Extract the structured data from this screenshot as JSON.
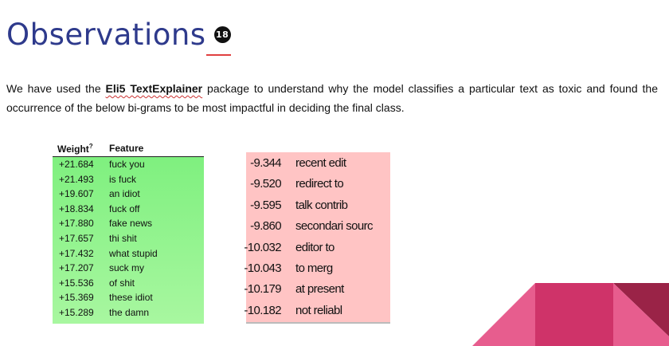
{
  "header": {
    "title": "Observations",
    "badge": "18"
  },
  "intro": {
    "part1": "We have used the",
    "bold": "Eli5 TextExplainer",
    "part2": "package to understand why the model classifies a particular text as toxic and found the occurrence of the below bi-grams to be most impactful in deciding the final class."
  },
  "positive_table": {
    "header_weight": "Weight",
    "header_sup": "?",
    "header_feature": "Feature",
    "rows": [
      {
        "weight": "+21.684",
        "feature": "fuck you"
      },
      {
        "weight": "+21.493",
        "feature": "is fuck"
      },
      {
        "weight": "+19.607",
        "feature": "an idiot"
      },
      {
        "weight": "+18.834",
        "feature": "fuck off"
      },
      {
        "weight": "+17.880",
        "feature": "fake news"
      },
      {
        "weight": "+17.657",
        "feature": "thi shit"
      },
      {
        "weight": "+17.432",
        "feature": "what stupid"
      },
      {
        "weight": "+17.207",
        "feature": "suck my"
      },
      {
        "weight": "+15.536",
        "feature": "of shit"
      },
      {
        "weight": "+15.369",
        "feature": "these idiot"
      },
      {
        "weight": "+15.289",
        "feature": "the damn"
      }
    ]
  },
  "negative_table": {
    "rows": [
      {
        "weight": "-9.344",
        "feature": "recent edit"
      },
      {
        "weight": "-9.520",
        "feature": "redirect to"
      },
      {
        "weight": "-9.595",
        "feature": "talk contrib"
      },
      {
        "weight": "-9.860",
        "feature": "secondari sourc"
      },
      {
        "weight": "-10.032",
        "feature": "editor to"
      },
      {
        "weight": "-10.043",
        "feature": "to merg"
      },
      {
        "weight": "-10.179",
        "feature": "at present"
      },
      {
        "weight": "-10.182",
        "feature": "not reliabl"
      }
    ]
  },
  "colors": {
    "title": "#2e3a8c",
    "positive_bg": "#8ff58a",
    "negative_bg": "#ffc4c4",
    "deco_pink": "#e75d8e",
    "deco_magenta": "#cf3369",
    "deco_dark": "#9a2347"
  }
}
